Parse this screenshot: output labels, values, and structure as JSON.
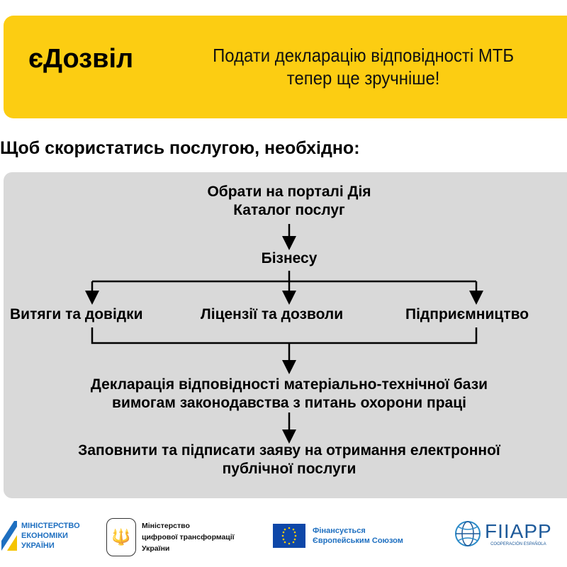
{
  "banner": {
    "brand": "єДозвіл",
    "tagline_line1": "Подати декларацію відповідності МТБ",
    "tagline_line2": "тепер ще зручніше!",
    "color": "#fccd12"
  },
  "intro": "Щоб скористатись послугою, необхідно:",
  "flow": {
    "step1_line1": "Обрати на порталі Дія",
    "step1_line2": "Каталог послуг",
    "step2": "Бізнесу",
    "branches": [
      "Витяги та довідки",
      "Ліцензії та дозволи",
      "Підприємництво"
    ],
    "step3_line1": "Декларація відповідності матеріально-технічної бази",
    "step3_line2": "вимогам законодавства з питань охорони праці",
    "step4_line1": "Заповнити та підписати заяву на отримання електронної",
    "step4_line2": "публічної послуги"
  },
  "footer": {
    "ministry_economy": [
      "МІНІСТЕРСТВО",
      "ЕКОНОМІКИ",
      "УКРАЇНИ"
    ],
    "ministry_digital": [
      "Міністерство",
      "цифрової трансформації",
      "України"
    ],
    "eu": [
      "Фінансується",
      "Європейським Союзом"
    ],
    "fiiapp": "FIIAPP",
    "fiiapp_sub": "COOPERACIÓN ESPAÑOLA"
  }
}
